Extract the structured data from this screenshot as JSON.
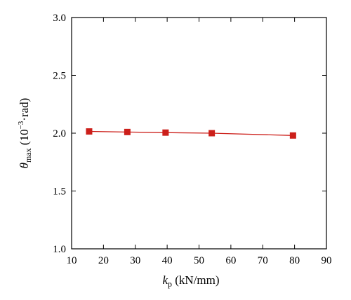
{
  "chart_data": {
    "type": "line",
    "xlabel": {
      "symbol": "k",
      "subscript": "p",
      "units": " (kN/mm)"
    },
    "ylabel": {
      "symbol": "θ",
      "subscript": "max",
      "units_prefix": " (10",
      "units_exp": "−3",
      "units_suffix": "·rad)"
    },
    "xlim": [
      10,
      90
    ],
    "ylim": [
      1.0,
      3.0
    ],
    "xticks": [
      10,
      20,
      30,
      40,
      50,
      60,
      70,
      80,
      90
    ],
    "yticks": [
      1.0,
      1.5,
      2.0,
      2.5,
      3.0
    ],
    "ytick_labels": [
      "1.0",
      "1.5",
      "2.0",
      "2.5",
      "3.0"
    ],
    "grid": false,
    "series": [
      {
        "marker": "square",
        "color": "#cc1f1a",
        "x": [
          15.5,
          27.5,
          39.5,
          54.0,
          79.5
        ],
        "y": [
          2.015,
          2.01,
          2.005,
          2.0,
          1.98
        ]
      }
    ]
  }
}
